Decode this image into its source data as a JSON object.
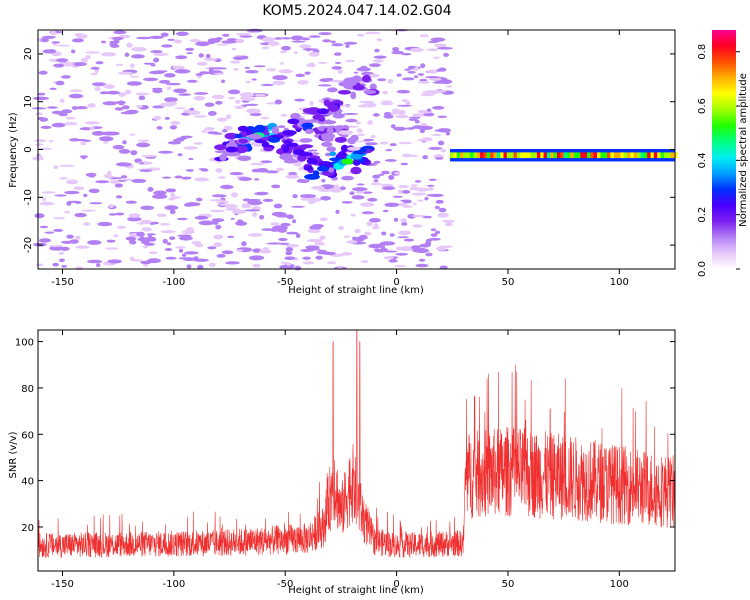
{
  "figure_title": "KOM5.2024.047.14.02.G04",
  "colors": {
    "snr_line": "#f03030",
    "colormap": [
      "#ffffff",
      "#e6c8fa",
      "#b37ff5",
      "#7a1ff0",
      "#4a00ff",
      "#0030ff",
      "#00a0ff",
      "#00f0f0",
      "#00ff80",
      "#20ff00",
      "#a0ff00",
      "#ffff00",
      "#ffb000",
      "#ff5000",
      "#ff0020",
      "#ff0090"
    ]
  },
  "chart_data": [
    {
      "type": "heatmap",
      "xlabel": "Height of straight line (km)",
      "ylabel": "Frequency (Hz)",
      "xlim": [
        -161,
        125
      ],
      "ylim": [
        -25,
        25
      ],
      "xticks": [
        -150,
        -100,
        -50,
        0,
        50,
        100
      ],
      "yticks": [
        -20,
        -10,
        0,
        10,
        20
      ],
      "xtick_labels": [
        "-150",
        "-100",
        "-50",
        "0",
        "50",
        "100"
      ],
      "ytick_labels": [
        "-20",
        "-10",
        "0",
        "10",
        "20"
      ],
      "signal_band": {
        "x_start": 24,
        "x_end": 125,
        "freq": -1.2,
        "amplitude_peak": 0.85
      },
      "blobs": [
        {
          "x": -62,
          "f": 3,
          "amp": 0.45
        },
        {
          "x": -68,
          "f": 2,
          "amp": 0.35
        },
        {
          "x": -74,
          "f": 0,
          "amp": 0.25
        },
        {
          "x": -55,
          "f": 2,
          "amp": 0.3
        },
        {
          "x": -40,
          "f": 5,
          "amp": 0.3
        },
        {
          "x": -33,
          "f": 8,
          "amp": 0.25
        },
        {
          "x": -30,
          "f": 4,
          "amp": 0.2
        },
        {
          "x": -44,
          "f": -0.5,
          "amp": 0.25
        },
        {
          "x": -33,
          "f": -4,
          "amp": 0.3
        },
        {
          "x": -22,
          "f": -2.5,
          "amp": 0.5
        },
        {
          "x": -18,
          "f": -1.5,
          "amp": 0.35
        },
        {
          "x": -25,
          "f": 2,
          "amp": 0.2
        },
        {
          "x": -17,
          "f": 13,
          "amp": 0.2
        }
      ],
      "colorbar": {
        "label": "Normalized spectral amplitude",
        "range": [
          0,
          0.88
        ],
        "ticks": [
          0.0,
          0.2,
          0.4,
          0.6,
          0.8
        ],
        "tick_labels": [
          "0.0",
          "0.2",
          "0.4",
          "0.6",
          "0.8"
        ]
      }
    },
    {
      "type": "line",
      "xlabel": "Height of straight line (km)",
      "ylabel": "SNR (v/v)",
      "xlim": [
        -161,
        125
      ],
      "ylim": [
        1,
        105
      ],
      "xticks": [
        -150,
        -100,
        -50,
        0,
        50,
        100
      ],
      "yticks": [
        20,
        40,
        60,
        80,
        100
      ],
      "xtick_labels": [
        "-150",
        "-100",
        "-50",
        "0",
        "50",
        "100"
      ],
      "ytick_labels": [
        "20",
        "40",
        "60",
        "80",
        "100"
      ],
      "baseline": [
        {
          "x": -161,
          "y": 12
        },
        {
          "x": -80,
          "y": 13
        },
        {
          "x": -40,
          "y": 15
        },
        {
          "x": -33,
          "y": 20
        },
        {
          "x": -28,
          "y": 40
        },
        {
          "x": -25,
          "y": 26
        },
        {
          "x": -20,
          "y": 40
        },
        {
          "x": -15,
          "y": 24
        },
        {
          "x": -10,
          "y": 14
        },
        {
          "x": 0,
          "y": 12
        },
        {
          "x": 30,
          "y": 13
        },
        {
          "x": 31,
          "y": 42
        },
        {
          "x": 50,
          "y": 44
        },
        {
          "x": 80,
          "y": 41
        },
        {
          "x": 125,
          "y": 35
        }
      ],
      "peaks": [
        {
          "x": -28.5,
          "y": 100
        },
        {
          "x": -17.8,
          "y": 105
        },
        {
          "x": -16.5,
          "y": 100
        },
        {
          "x": 58,
          "y": 66
        },
        {
          "x": 69,
          "y": 71
        }
      ]
    }
  ]
}
